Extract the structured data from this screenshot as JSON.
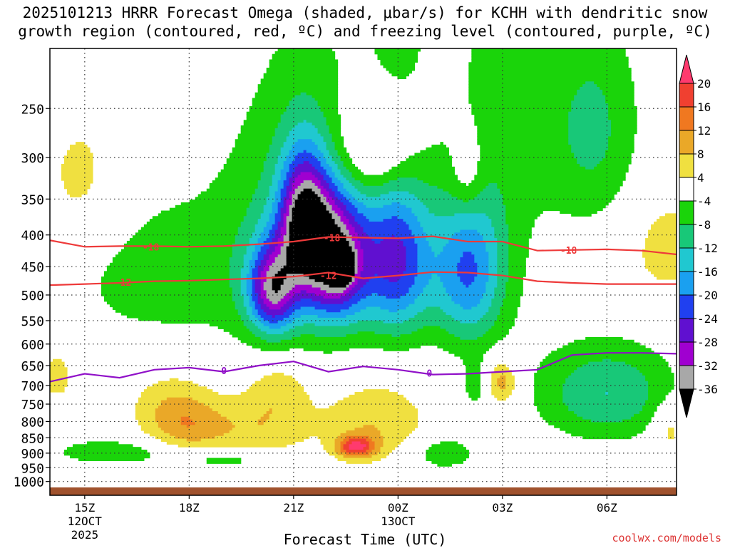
{
  "chart_data": {
    "type": "heatmap",
    "title_line1": "2025101213 HRRR Forecast Omega (shaded, μbar/s) for KCHH with dendritic snow",
    "title_line2": "growth region (contoured, red, ºC) and freezing level (contoured, purple, ºC)",
    "xlabel": "Forecast Time (UTC)",
    "ylabel": "",
    "credit": "coolwx.com/models",
    "x_range_hours": [
      -1,
      17
    ],
    "x_ticks": [
      {
        "hour": 0,
        "label": "15Z",
        "sub1": "12OCT",
        "sub2": "2025"
      },
      {
        "hour": 3,
        "label": "18Z",
        "sub1": "",
        "sub2": ""
      },
      {
        "hour": 6,
        "label": "21Z",
        "sub1": "",
        "sub2": ""
      },
      {
        "hour": 9,
        "label": "00Z",
        "sub1": "13OCT",
        "sub2": ""
      },
      {
        "hour": 12,
        "label": "03Z",
        "sub1": "",
        "sub2": ""
      },
      {
        "hour": 15,
        "label": "06Z",
        "sub1": "",
        "sub2": ""
      }
    ],
    "y_range_mb": [
      1025,
      200
    ],
    "y_ticks": [
      "250",
      "300",
      "350",
      "400",
      "450",
      "500",
      "550",
      "600",
      "650",
      "700",
      "750",
      "800",
      "850",
      "900",
      "950",
      "1000"
    ],
    "colorbar": {
      "labels": [
        "20",
        "16",
        "12",
        "8",
        "4",
        "-4",
        "-8",
        "-12",
        "-16",
        "-20",
        "-24",
        "-28",
        "-32",
        "-36"
      ],
      "bounds": [
        20,
        16,
        12,
        8,
        4,
        -4,
        -8,
        -12,
        -16,
        -20,
        -24,
        -28,
        -32,
        -36
      ],
      "colors": [
        "#ff3a6e",
        "#f04030",
        "#f07820",
        "#eaa828",
        "#f0e040",
        "#ffffff",
        "#1ad40a",
        "#18c878",
        "#20c8d0",
        "#1aa0f0",
        "#2040f0",
        "#6010d0",
        "#a000d0",
        "#a8a8a8"
      ]
    },
    "dgz_contours": [
      {
        "label": "-18",
        "hours": [
          -1,
          0,
          1,
          2,
          3,
          4,
          5,
          6,
          7,
          8,
          9,
          10,
          11,
          12,
          13,
          14,
          15,
          16,
          17
        ],
        "mb": [
          408,
          418,
          417,
          417,
          418,
          417,
          414,
          410,
          403,
          404,
          405,
          402,
          410,
          410,
          424,
          423,
          422,
          424,
          430
        ]
      },
      {
        "label": "-12",
        "hours": [
          -1,
          0,
          1,
          2,
          3,
          4,
          5,
          6,
          7,
          8,
          9,
          10,
          11,
          12,
          13,
          14,
          15,
          16,
          17
        ],
        "mb": [
          482,
          480,
          478,
          475,
          474,
          472,
          470,
          467,
          460,
          470,
          465,
          459,
          460,
          465,
          475,
          478,
          480,
          480,
          480
        ]
      }
    ],
    "contour_labels_dgz": [
      {
        "text": "-18",
        "hour": 1.9,
        "mb": 418
      },
      {
        "text": "-18",
        "hour": 7.1,
        "mb": 404
      },
      {
        "text": "-18",
        "hour": 13.9,
        "mb": 423
      },
      {
        "text": "-12",
        "hour": 1.1,
        "mb": 477
      },
      {
        "text": "-12",
        "hour": 7.0,
        "mb": 465
      }
    ],
    "freezing_level": {
      "label": "0",
      "hours": [
        -1,
        0,
        1,
        2,
        3,
        4,
        5,
        6,
        7,
        8,
        9,
        10,
        11,
        12,
        13,
        14,
        15,
        16,
        17
      ],
      "mb": [
        690,
        670,
        680,
        660,
        655,
        665,
        650,
        640,
        665,
        652,
        660,
        672,
        670,
        665,
        660,
        625,
        620,
        620,
        622
      ]
    },
    "contour_labels_freezing": [
      {
        "text": "0",
        "hour": 4.0,
        "mb": 662
      },
      {
        "text": "0",
        "hour": 9.9,
        "mb": 668
      }
    ],
    "blobs": [
      {
        "hour": -0.1,
        "mb": 330,
        "hw": 1.3,
        "hh": 95,
        "value": 6
      },
      {
        "hour": 2.0,
        "mb": 460,
        "hw": 2.9,
        "hh": 140,
        "value": -6
      },
      {
        "hour": -0.8,
        "mb": 670,
        "hw": 0.8,
        "hh": 110,
        "value": 5
      },
      {
        "hour": 0.7,
        "mb": 895,
        "hw": 1.6,
        "hh": 40,
        "value": -8
      },
      {
        "hour": 2.5,
        "mb": 740,
        "hw": 1.3,
        "hh": 90,
        "value": 6
      },
      {
        "hour": 3.0,
        "mb": 820,
        "hw": 1.2,
        "hh": 80,
        "value": 9
      },
      {
        "hour": 4.2,
        "mb": 920,
        "hw": 1.8,
        "hh": 35,
        "value": -7
      },
      {
        "hour": 5.1,
        "mb": 820,
        "hw": 1.3,
        "hh": 110,
        "value": 7
      },
      {
        "hour": 5.6,
        "mb": 700,
        "hw": 0.9,
        "hh": 80,
        "value": 6
      },
      {
        "hour": 6.4,
        "mb": 400,
        "hw": 2.3,
        "hh": 220,
        "value": -10
      },
      {
        "hour": 5.4,
        "mb": 490,
        "hw": 0.7,
        "hh": 80,
        "value": -26
      },
      {
        "hour": 6.3,
        "mb": 380,
        "hw": 0.7,
        "hh": 90,
        "value": -28
      },
      {
        "hour": 7.2,
        "mb": 440,
        "hw": 0.9,
        "hh": 100,
        "value": -30
      },
      {
        "hour": 7.4,
        "mb": 450,
        "hw": 0.25,
        "hh": 25,
        "value": -34
      },
      {
        "hour": 8.3,
        "mb": 290,
        "hw": 1.1,
        "hh": 55,
        "value": 11
      },
      {
        "hour": 8.3,
        "mb": 800,
        "hw": 1.6,
        "hh": 130,
        "value": 8
      },
      {
        "hour": 7.8,
        "mb": 880,
        "hw": 0.55,
        "hh": 35,
        "value": 18
      },
      {
        "hour": 9.0,
        "mb": 440,
        "hw": 1.0,
        "hh": 130,
        "value": -22
      },
      {
        "hour": 9.0,
        "mb": 160,
        "hw": 0.8,
        "hh": 70,
        "value": -6
      },
      {
        "hour": 10.3,
        "mb": 900,
        "hw": 0.9,
        "hh": 55,
        "value": -8
      },
      {
        "hour": 11.2,
        "mb": 700,
        "hw": 0.3,
        "hh": 60,
        "value": -6
      },
      {
        "hour": 11.0,
        "mb": 320,
        "hw": 0.5,
        "hh": 55,
        "value": 7
      },
      {
        "hour": 11.0,
        "mb": 460,
        "hw": 1.0,
        "hh": 130,
        "value": -18
      },
      {
        "hour": 11.9,
        "mb": 280,
        "hw": 1.6,
        "hh": 280,
        "value": -5
      },
      {
        "hour": 12.0,
        "mb": 690,
        "hw": 0.45,
        "hh": 60,
        "value": 11
      },
      {
        "hour": 14.6,
        "mb": 270,
        "hw": 1.4,
        "hh": 110,
        "value": -9
      },
      {
        "hour": 15.0,
        "mb": 720,
        "hw": 2.0,
        "hh": 130,
        "value": -12
      },
      {
        "hour": 16.7,
        "mb": 420,
        "hw": 1.2,
        "hh": 90,
        "value": 6
      },
      {
        "hour": 16.8,
        "mb": 820,
        "hw": 0.5,
        "hh": 80,
        "value": 7
      }
    ]
  }
}
